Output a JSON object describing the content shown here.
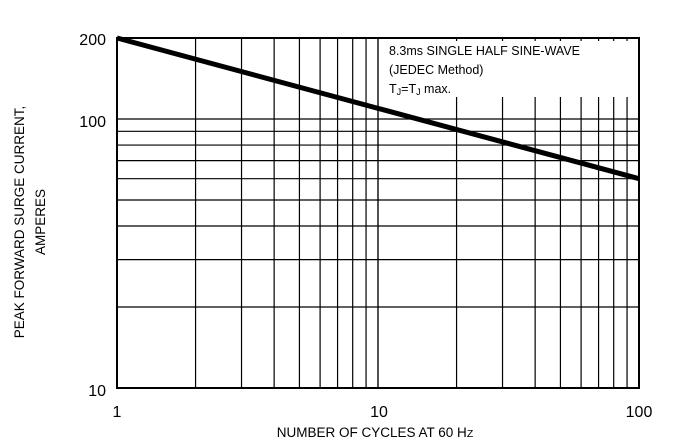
{
  "chart_data": {
    "type": "line",
    "xscale": "log",
    "yscale": "log",
    "xlim": [
      1,
      100
    ],
    "ylim": [
      10,
      200
    ],
    "grid": true,
    "xlabel": "NUMBER OF CYCLES AT 60 Hz",
    "ylabel_line1": "PEAK FORWARD SURGE CURRENT,",
    "ylabel_line2": "AMPERES",
    "x_tick_labels": [
      "1",
      "10",
      "100"
    ],
    "y_tick_labels": [
      "10",
      "100",
      "200"
    ],
    "annotation": {
      "line1": "8.3ms SINGLE HALF SINE-WAVE",
      "line2": "(JEDEC Method)",
      "line3": "TJ=TJ max."
    },
    "series": [
      {
        "x": [
          1,
          100
        ],
        "y": [
          200,
          60
        ]
      }
    ]
  }
}
